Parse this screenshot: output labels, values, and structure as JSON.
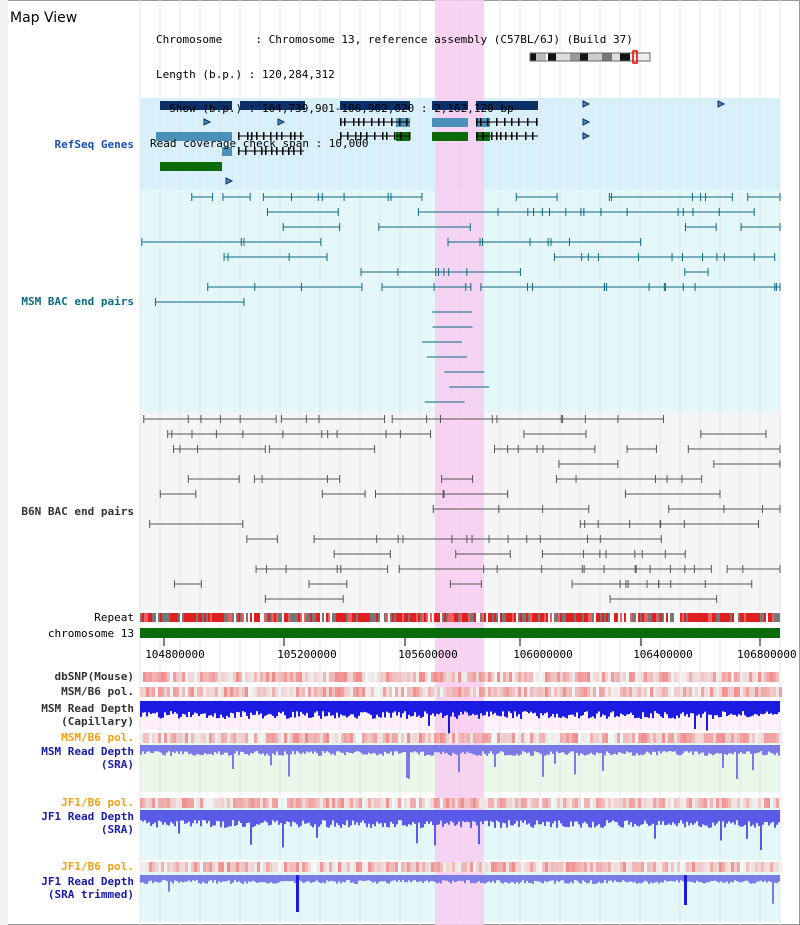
{
  "map_title": "Map View",
  "info": {
    "chromosome_line": "Chromosome     : Chromosome 13, reference assembly (C57BL/6J) (Build 37)",
    "length_line": "Length (b.p.) : 120,284,312",
    "show_line": "  Show (b.p.) : 104,739,901-106,902,020 : 2,162,120 bp",
    "coverage_line": "Read coverage check span : 10,000"
  },
  "tracks": {
    "refseq": "RefSeq Genes",
    "msm_bac": "MSM BAC end pairs",
    "b6n_bac": "B6N BAC end pairs",
    "repeat": "Repeat",
    "chromosome": "chromosome 13",
    "dbsnp": "dbSNP(Mouse)",
    "msm_b6_pol_1": "MSM/B6 pol.",
    "msm_depth_cap_1": "MSM Read Depth",
    "msm_depth_cap_2": "(Capillary)",
    "msm_b6_pol_2": "MSM/B6 pol.",
    "msm_depth_sra_1": "MSM Read Depth",
    "msm_depth_sra_2": "(SRA)",
    "jf1_pol_1": "JF1/B6 pol.",
    "jf1_depth_1": "JF1 Read Depth",
    "jf1_depth_2": "(SRA)",
    "jf1_pol_2": "JF1/B6 pol.",
    "jf1_trim_1": "JF1 Read Depth",
    "jf1_trim_2": "(SRA trimmed)"
  },
  "axis_ticks": [
    "104800000",
    "105200000",
    "105600000",
    "106000000",
    "106400000",
    "106800000"
  ],
  "colors": {
    "highlight": "#f8cdf0",
    "refseq_bg": "#d8f0fa",
    "msm_bg": "#e4f8fa",
    "b6n_bg": "#f5f5f8",
    "gene_navy": "#0b2f66",
    "gene_lightblue": "#4a90b8",
    "gene_green": "#0b6b0b",
    "chrom_green": "#0b6b0b",
    "depth_blue": "#1a1ae0",
    "depth_light": "#7a7ae8"
  }
}
